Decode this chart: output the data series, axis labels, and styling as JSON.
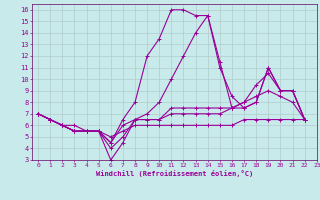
{
  "xlabel": "Windchill (Refroidissement éolien,°C)",
  "bg_color": "#c8eaea",
  "grid_color": "#b0cccc",
  "line_color": "#990099",
  "spine_color": "#660066",
  "xlim": [
    -0.5,
    23
  ],
  "ylim": [
    3,
    16.5
  ],
  "xticks": [
    0,
    1,
    2,
    3,
    4,
    5,
    6,
    7,
    8,
    9,
    10,
    11,
    12,
    13,
    14,
    15,
    16,
    17,
    18,
    19,
    20,
    21,
    22,
    23
  ],
  "yticks": [
    3,
    4,
    5,
    6,
    7,
    8,
    9,
    10,
    11,
    12,
    13,
    14,
    15,
    16
  ],
  "lines": [
    {
      "x": [
        0,
        1,
        2,
        3,
        4,
        5,
        6,
        7,
        8,
        9,
        10,
        11,
        12,
        13,
        14,
        15,
        16,
        17,
        18,
        19,
        20,
        21,
        22
      ],
      "y": [
        7.0,
        6.5,
        6.0,
        6.0,
        5.5,
        5.5,
        4.5,
        6.5,
        8.0,
        12.0,
        13.5,
        16.0,
        16.0,
        15.5,
        15.5,
        11.5,
        7.5,
        7.5,
        8.0,
        11.0,
        9.0,
        9.0,
        6.5
      ]
    },
    {
      "x": [
        0,
        1,
        2,
        3,
        4,
        5,
        6,
        7,
        8,
        9,
        10,
        11,
        12,
        13,
        14,
        15,
        16,
        17,
        18,
        19,
        20,
        21,
        22
      ],
      "y": [
        7.0,
        6.5,
        6.0,
        5.5,
        5.5,
        5.5,
        4.0,
        5.0,
        6.5,
        7.0,
        8.0,
        10.0,
        12.0,
        14.0,
        15.5,
        11.0,
        8.5,
        7.5,
        8.0,
        11.0,
        9.0,
        9.0,
        6.5
      ]
    },
    {
      "x": [
        0,
        1,
        2,
        3,
        4,
        5,
        6,
        7,
        8,
        9,
        10,
        11,
        12,
        13,
        14,
        15,
        16,
        17,
        18,
        19,
        20,
        21,
        22
      ],
      "y": [
        7.0,
        6.5,
        6.0,
        5.5,
        5.5,
        5.5,
        3.0,
        4.5,
        6.5,
        6.5,
        6.5,
        7.5,
        7.5,
        7.5,
        7.5,
        7.5,
        7.5,
        8.0,
        9.5,
        10.5,
        9.0,
        9.0,
        6.5
      ]
    },
    {
      "x": [
        0,
        1,
        2,
        3,
        4,
        5,
        6,
        7,
        8,
        9,
        10,
        11,
        12,
        13,
        14,
        15,
        16,
        17,
        18,
        19,
        20,
        21,
        22
      ],
      "y": [
        7.0,
        6.5,
        6.0,
        5.5,
        5.5,
        5.5,
        4.5,
        6.0,
        6.5,
        6.5,
        6.5,
        7.0,
        7.0,
        7.0,
        7.0,
        7.0,
        7.5,
        8.0,
        8.5,
        9.0,
        8.5,
        8.0,
        6.5
      ]
    },
    {
      "x": [
        0,
        1,
        2,
        3,
        4,
        5,
        6,
        7,
        8,
        9,
        10,
        11,
        12,
        13,
        14,
        15,
        16,
        17,
        18,
        19,
        20,
        21,
        22
      ],
      "y": [
        7.0,
        6.5,
        6.0,
        5.5,
        5.5,
        5.5,
        5.0,
        5.5,
        6.0,
        6.0,
        6.0,
        6.0,
        6.0,
        6.0,
        6.0,
        6.0,
        6.0,
        6.5,
        6.5,
        6.5,
        6.5,
        6.5,
        6.5
      ]
    }
  ]
}
